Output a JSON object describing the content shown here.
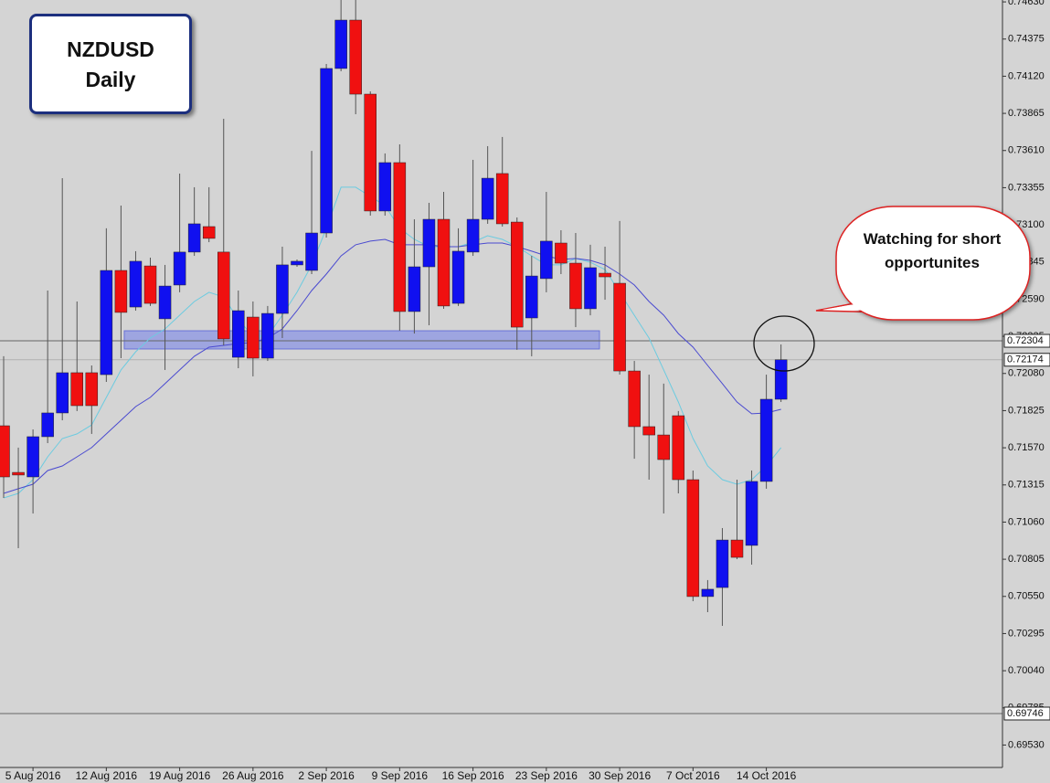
{
  "chart_data": {
    "type": "candlestick",
    "title": "NZDUSD",
    "subtitle": "Daily",
    "annotation": "Watching for short opportunites",
    "categories": [
      null,
      null,
      "5 Aug 2016",
      null,
      null,
      null,
      null,
      "12 Aug 2016",
      null,
      null,
      null,
      null,
      "19 Aug 2016",
      null,
      null,
      null,
      null,
      "26 Aug 2016",
      null,
      null,
      null,
      null,
      "2 Sep 2016",
      null,
      null,
      null,
      null,
      "9 Sep 2016",
      null,
      null,
      null,
      null,
      "16 Sep 2016",
      null,
      null,
      null,
      null,
      "23 Sep 2016",
      null,
      null,
      null,
      null,
      "30 Sep 2016",
      null,
      null,
      null,
      null,
      "7 Oct 2016",
      null,
      null,
      null,
      null,
      "14 Oct 2016",
      null
    ],
    "open": [
      0.71721,
      0.71401,
      0.7137,
      0.71646,
      0.71809,
      0.72085,
      0.72085,
      0.72072,
      0.72787,
      0.72536,
      0.72818,
      0.72455,
      0.72687,
      0.72913,
      0.73088,
      0.72913,
      0.72191,
      0.72467,
      0.72185,
      0.72492,
      0.72825,
      0.72787,
      0.73044,
      0.74173,
      0.74505,
      0.73997,
      0.73195,
      0.73527,
      0.72505,
      0.72812,
      0.73138,
      0.72561,
      0.72913,
      0.73138,
      0.73452,
      0.73119,
      0.72461,
      0.72731,
      0.72975,
      0.72837,
      0.72524,
      0.72768,
      0.72699,
      0.72097,
      0.71715,
      0.71658,
      0.7179,
      0.71351,
      0.70549,
      0.70611,
      0.70937,
      0.709,
      0.71339,
      0.71903
    ],
    "high": [
      0.72198,
      0.71571,
      0.71696,
      0.72649,
      0.7342,
      0.72574,
      0.72135,
      0.73076,
      0.73232,
      0.72919,
      0.72875,
      0.72825,
      0.73452,
      0.73358,
      0.73358,
      0.73828,
      0.72649,
      0.72574,
      0.72543,
      0.7295,
      0.72862,
      0.73608,
      0.74204,
      0.74643,
      0.74643,
      0.74016,
      0.7359,
      0.73652,
      0.73138,
      0.73251,
      0.73326,
      0.73076,
      0.73546,
      0.7364,
      0.73703,
      0.73151,
      0.72887,
      0.73326,
      0.73063,
      0.73044,
      0.72963,
      0.7295,
      0.73126,
      0.72166,
      0.72072,
      0.7201,
      0.71822,
      0.71414,
      0.70662,
      0.71019,
      0.71351,
      0.71414,
      0.72072,
      0.72279
    ],
    "low": [
      0.71226,
      0.70881,
      0.71119,
      0.71602,
      0.71759,
      0.71822,
      0.71665,
      0.72022,
      0.72185,
      0.72511,
      0.72543,
      0.72104,
      0.72637,
      0.72887,
      0.72981,
      0.72273,
      0.72116,
      0.7206,
      0.72166,
      0.72323,
      0.72812,
      0.72762,
      0.73013,
      0.74154,
      0.73859,
      0.73163,
      0.73163,
      0.72373,
      0.72354,
      0.72411,
      0.72524,
      0.72543,
      0.72887,
      0.73107,
      0.73088,
      0.72242,
      0.72198,
      0.72637,
      0.72762,
      0.72398,
      0.72479,
      0.72586,
      0.72072,
      0.71495,
      0.71351,
      0.71119,
      0.71257,
      0.70517,
      0.70442,
      0.70348,
      0.70806,
      0.70768,
      0.71289,
      0.71884
    ],
    "close": [
      0.7137,
      0.71383,
      0.71646,
      0.71809,
      0.72085,
      0.71859,
      0.71859,
      0.72787,
      0.72499,
      0.7285,
      0.72561,
      0.7268,
      0.72913,
      0.73107,
      0.73007,
      0.72317,
      0.72511,
      0.72185,
      0.72492,
      0.72825,
      0.7285,
      0.73044,
      0.74173,
      0.74505,
      0.73997,
      0.73195,
      0.73527,
      0.72505,
      0.72812,
      0.73138,
      0.72543,
      0.72919,
      0.73138,
      0.7342,
      0.73107,
      0.72398,
      0.72749,
      0.72988,
      0.72837,
      0.72524,
      0.72806,
      0.72743,
      0.72097,
      0.71715,
      0.71658,
      0.71489,
      0.71351,
      0.70549,
      0.70599,
      0.70937,
      0.70818,
      0.71339,
      0.71903,
      0.72174
    ],
    "up_color": "#1010f0",
    "down_color": "#f01010",
    "lines": [
      {
        "color": "#6ccbe0",
        "values": [
          0.71226,
          0.71257,
          0.71351,
          0.71508,
          0.71633,
          0.71665,
          0.71727,
          0.71916,
          0.72104,
          0.72229,
          0.72323,
          0.72386,
          0.7248,
          0.72574,
          0.72637,
          0.72605,
          0.72449,
          0.72336,
          0.72336,
          0.7248,
          0.72637,
          0.72825,
          0.73076,
          0.73358,
          0.73358,
          0.73295,
          0.73232,
          0.73076,
          0.73,
          0.7295,
          0.7295,
          0.7295,
          0.72981,
          0.73025,
          0.73,
          0.7295,
          0.72887,
          0.72825,
          0.72825,
          0.72869,
          0.72843,
          0.72793,
          0.72637,
          0.7248,
          0.72323,
          0.72104,
          0.71884,
          0.71633,
          0.71445,
          0.71351,
          0.7132,
          0.71351,
          0.71445,
          0.71571
        ]
      },
      {
        "color": "#4a4ad0",
        "values": [
          0.71257,
          0.71289,
          0.7132,
          0.71414,
          0.71445,
          0.71508,
          0.71571,
          0.71665,
          0.71759,
          0.71853,
          0.71916,
          0.7201,
          0.72104,
          0.72198,
          0.7226,
          0.72273,
          0.72285,
          0.72292,
          0.72323,
          0.72386,
          0.72511,
          0.72649,
          0.72762,
          0.72887,
          0.72963,
          0.72988,
          0.73,
          0.72963,
          0.72963,
          0.72963,
          0.7295,
          0.7295,
          0.72963,
          0.72975,
          0.72975,
          0.7295,
          0.72919,
          0.72887,
          0.72862,
          0.72869,
          0.72856,
          0.72825,
          0.72762,
          0.72687,
          0.72574,
          0.7248,
          0.72354,
          0.7226,
          0.72135,
          0.7201,
          0.71884,
          0.71803,
          0.71809,
          0.71834
        ]
      }
    ],
    "zone": {
      "range": [
        0.72248,
        0.72373
      ],
      "color": "#7a85e8"
    },
    "price_lines": [
      {
        "value": 0.72304,
        "label": "0.72304",
        "color": "#666666"
      },
      {
        "value": 0.72174,
        "label": "0.72174",
        "color": "#b0b0b0"
      },
      {
        "value": 0.69746,
        "label": "0.69746",
        "color": "#666666"
      }
    ],
    "ylim": [
      0.69376,
      0.74643
    ],
    "yticks": [
      {
        "value": 0.7463,
        "label": "0.74630"
      },
      {
        "value": 0.74375,
        "label": "0.74375"
      },
      {
        "value": 0.7412,
        "label": "0.74120"
      },
      {
        "value": 0.73865,
        "label": "0.73865"
      },
      {
        "value": 0.7361,
        "label": "0.73610"
      },
      {
        "value": 0.73355,
        "label": "0.73355"
      },
      {
        "value": 0.731,
        "label": "0.73100"
      },
      {
        "value": 0.72845,
        "label": "0.72845"
      },
      {
        "value": 0.7259,
        "label": "0.72590"
      },
      {
        "value": 0.72335,
        "label": "0.72335"
      },
      {
        "value": 0.7208,
        "label": "0.72080"
      },
      {
        "value": 0.71825,
        "label": "0.71825"
      },
      {
        "value": 0.7157,
        "label": "0.71570"
      },
      {
        "value": 0.71315,
        "label": "0.71315"
      },
      {
        "value": 0.7106,
        "label": "0.71060"
      },
      {
        "value": 0.70805,
        "label": "0.70805"
      },
      {
        "value": 0.7055,
        "label": "0.70550"
      },
      {
        "value": 0.70295,
        "label": "0.70295"
      },
      {
        "value": 0.7004,
        "label": "0.70040"
      },
      {
        "value": 0.69785,
        "label": "0.69785"
      },
      {
        "value": 0.6953,
        "label": "0.69530"
      }
    ]
  }
}
